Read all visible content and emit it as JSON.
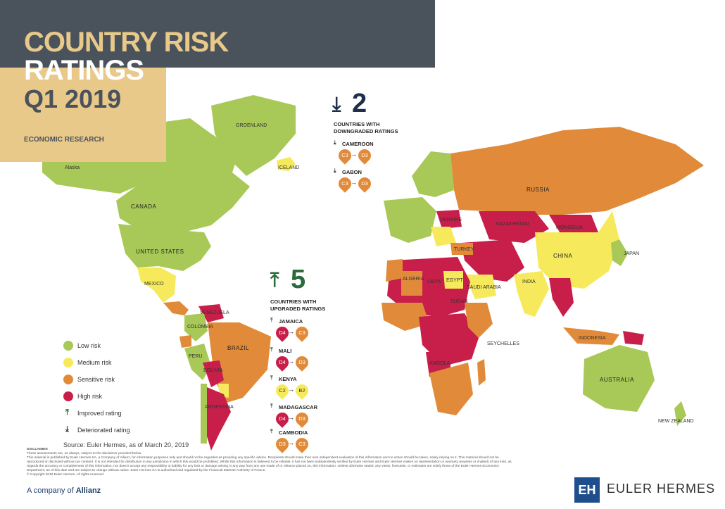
{
  "header": {
    "title_line1": "COUNTRY RISK",
    "title_line2": "RATINGS",
    "title_line3": "Q1 2019",
    "subtitle": "ECONOMIC RESEARCH"
  },
  "colors": {
    "low": "#a8c957",
    "medium": "#f6ea5c",
    "sensitive": "#e18b3a",
    "high": "#c81e4a",
    "dark": "#4a535c",
    "tan": "#e8c98a",
    "navy": "#1f2e4a",
    "green_arrow": "#2c6a3a"
  },
  "map_labels": {
    "alaska": "Alaska",
    "canada": "CANADA",
    "united_states": "UNITED STATES",
    "groenland": "GROENLAND",
    "iceland": "ICELAND",
    "russia": "RUSSIA",
    "china": "CHINA",
    "kazakhstan": "KAZAKHSTAN",
    "mongolia": "MONGOLIA",
    "india": "INDIA",
    "brazil": "BRAZIL",
    "argentina": "ARGENTINA",
    "australia": "AUSTRALIA",
    "mexico": "MEXICO",
    "libya": "LIBYA",
    "egypt": "EGYPT",
    "angola": "ANGOLA",
    "colombia": "COLOMBIA",
    "peru": "PERU",
    "bolivia": "BOLIVIA",
    "indonesia": "INDONESIA",
    "japan": "JAPAN",
    "venezuela": "VENEZUELA",
    "seychelles": "SEYCHELLES",
    "new_zealand": "NEW ZEALAND",
    "ukraine": "UKRAINE",
    "turkey": "TURKEY",
    "sudan": "SUDAN",
    "algeria": "ALGERIA",
    "saudi_arabia": "SAUDI ARABIA"
  },
  "legend": {
    "low": "Low risk",
    "medium": "Medium risk",
    "sensitive": "Sensitive risk",
    "high": "High risk",
    "improved": "Improved rating",
    "deteriorated": "Deteriorated rating"
  },
  "source": "Source: Euler Hermes, as of March 20, 2019",
  "downgraded": {
    "count": "2",
    "title_line1": "COUNTRIES WITH",
    "title_line2": "DOWNGRADED RATINGS",
    "items": [
      {
        "name": "CAMEROON",
        "from": "C3",
        "to": "D3"
      },
      {
        "name": "GABON",
        "from": "C3",
        "to": "D3"
      }
    ]
  },
  "upgraded": {
    "count": "5",
    "title_line1": "COUNTRIES WITH",
    "title_line2": "UPGRADED RATINGS",
    "items": [
      {
        "name": "JAMAICA",
        "from": "D4",
        "to": "C3"
      },
      {
        "name": "MALI",
        "from": "D4",
        "to": "D3"
      },
      {
        "name": "KENYA",
        "from": "C2",
        "to": "B2"
      },
      {
        "name": "MADAGASCAR",
        "from": "D4",
        "to": "D3"
      },
      {
        "name": "CAMBODIA",
        "from": "D3",
        "to": "C3"
      }
    ]
  },
  "disclaimer": {
    "head": "DISCLAIMER",
    "line1": "These assessments are, as always, subject to the disclaimer provided below.",
    "body": "This material is published by Euler Hermes SA, a Company of Allianz, for information purposes only and should not be regarded as providing any specific advice. Recipients should make their own independent evaluation of this information and no action should be taken, solely relying on it. This material should not be reproduced or disclosed without our consent. It is not intended for distribution in any jurisdiction in which this would be prohibited. Whilst this information is believed to be reliable, it has not been independently verified by Euler Hermes and Euler Hermes makes no representation or warranty (express or implied) of any kind, as regards the accuracy or completeness of this information, nor does it accept any responsibility or liability for any loss or damage arising in any way from any use made of or reliance placed on, this information. Unless otherwise stated, any views, forecasts, or estimates are solely those of the Euler Hermes Economics Department, as of this date and are subject to change without notice. Euler Hermes SA is authorised and regulated by the Financial Markets Authority of France.",
    "copyright": "© Copyright 2019 Euler Hermes. All rights reserved."
  },
  "footer": {
    "company_of": "A company of",
    "allianz": "Allianz",
    "eh_mark": "EH",
    "eh_name": "EULER HERMES"
  }
}
